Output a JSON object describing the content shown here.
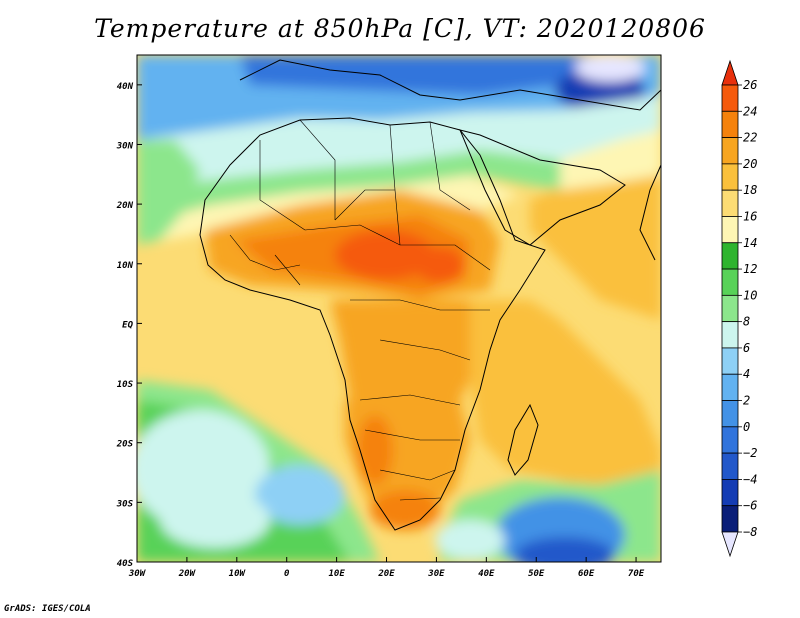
{
  "title": "Temperature at 850hPa [C], VT: 2020120806",
  "credit": "GrADS: IGES/COLA",
  "map": {
    "region": "Africa",
    "lon_range": [
      -30,
      75
    ],
    "lat_range": [
      -40,
      45
    ],
    "lon_ticks": [
      -30,
      -20,
      -10,
      0,
      10,
      20,
      30,
      40,
      50,
      60,
      70
    ],
    "lon_tick_labels": [
      "30W",
      "20W",
      "10W",
      "0",
      "10E",
      "20E",
      "30E",
      "40E",
      "50E",
      "60E",
      "70E"
    ],
    "lat_ticks": [
      40,
      30,
      20,
      10,
      0,
      -10,
      -20,
      -30,
      -40
    ],
    "lat_tick_labels": [
      "40N",
      "30N",
      "20N",
      "10N",
      "EQ",
      "10S",
      "20S",
      "30S",
      "40S"
    ]
  },
  "colorbar": {
    "levels": [
      26,
      24,
      22,
      20,
      18,
      16,
      14,
      12,
      10,
      8,
      6,
      4,
      2,
      0,
      -2,
      -4,
      -6,
      -8
    ],
    "labels": [
      "26",
      "24",
      "22",
      "20",
      "18",
      "16",
      "14",
      "12",
      "10",
      "8",
      "6",
      "4",
      "2",
      "0",
      "−2",
      "−4",
      "−6",
      "−8"
    ],
    "colors_top_to_bottom": [
      "#e8300c",
      "#f55a0c",
      "#f5820c",
      "#f7a520",
      "#fac03c",
      "#fcdc74",
      "#fef6b4",
      "#2eb42e",
      "#58d258",
      "#8ce68c",
      "#cdf5ee",
      "#8ed0f5",
      "#62b2f0",
      "#4392e6",
      "#3174dc",
      "#2258ca",
      "#143cb4",
      "#0a1e78",
      "#e6e6ff"
    ]
  }
}
